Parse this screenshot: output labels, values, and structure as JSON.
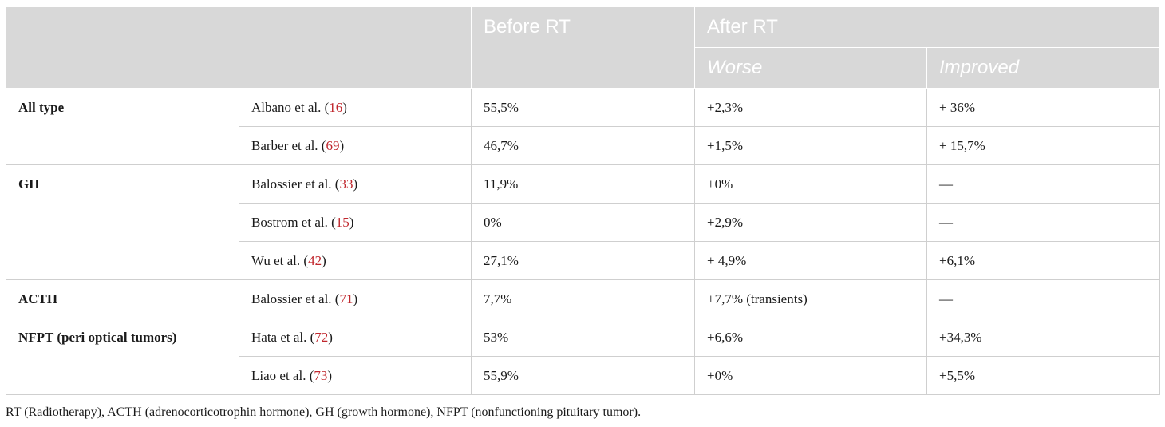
{
  "header": {
    "empty": "",
    "before": "Before RT",
    "after": "After RT",
    "worse": "Worse",
    "improved": "Improved"
  },
  "groups": [
    {
      "label": "All type",
      "rows": [
        {
          "author": "Albano et al. (",
          "ref": "16",
          "close": ")",
          "before": "55,5%",
          "worse": "+2,3%",
          "improved": "+ 36%"
        },
        {
          "author": "Barber et al. (",
          "ref": "69",
          "close": ")",
          "before": "46,7%",
          "worse": "+1,5%",
          "improved": "+ 15,7%"
        }
      ]
    },
    {
      "label": "GH",
      "rows": [
        {
          "author": "Balossier et al. (",
          "ref": "33",
          "close": ")",
          "before": "11,9%",
          "worse": "+0%",
          "improved": "—"
        },
        {
          "author": "Bostrom et al. (",
          "ref": "15",
          "close": ")",
          "before": "0%",
          "worse": "+2,9%",
          "improved": "—"
        },
        {
          "author": "Wu et al. (",
          "ref": "42",
          "close": ")",
          "before": "27,1%",
          "worse": "+ 4,9%",
          "improved": "+6,1%"
        }
      ]
    },
    {
      "label": "ACTH",
      "rows": [
        {
          "author": "Balossier et al. (",
          "ref": "71",
          "close": ")",
          "before": "7,7%",
          "worse": "+7,7% (transients)",
          "improved": "—"
        }
      ]
    },
    {
      "label": "NFPT (peri optical tumors)",
      "rows": [
        {
          "author": "Hata et al. (",
          "ref": "72",
          "close": ")",
          "before": "53%",
          "worse": "+6,6%",
          "improved": "+34,3%"
        },
        {
          "author": "Liao et al. (",
          "ref": "73",
          "close": ")",
          "before": "55,9%",
          "worse": "+0%",
          "improved": "+5,5%"
        }
      ]
    }
  ],
  "footnote": "RT (Radiotherapy), ACTH (adrenocorticotrophin hormone), GH (growth hormone), NFPT (nonfunctioning pituitary tumor).",
  "colors": {
    "header_bg": "#d8d8d8",
    "header_text": "#ffffff",
    "reference_link": "#c0272d",
    "grid": "#cfcfcf"
  }
}
